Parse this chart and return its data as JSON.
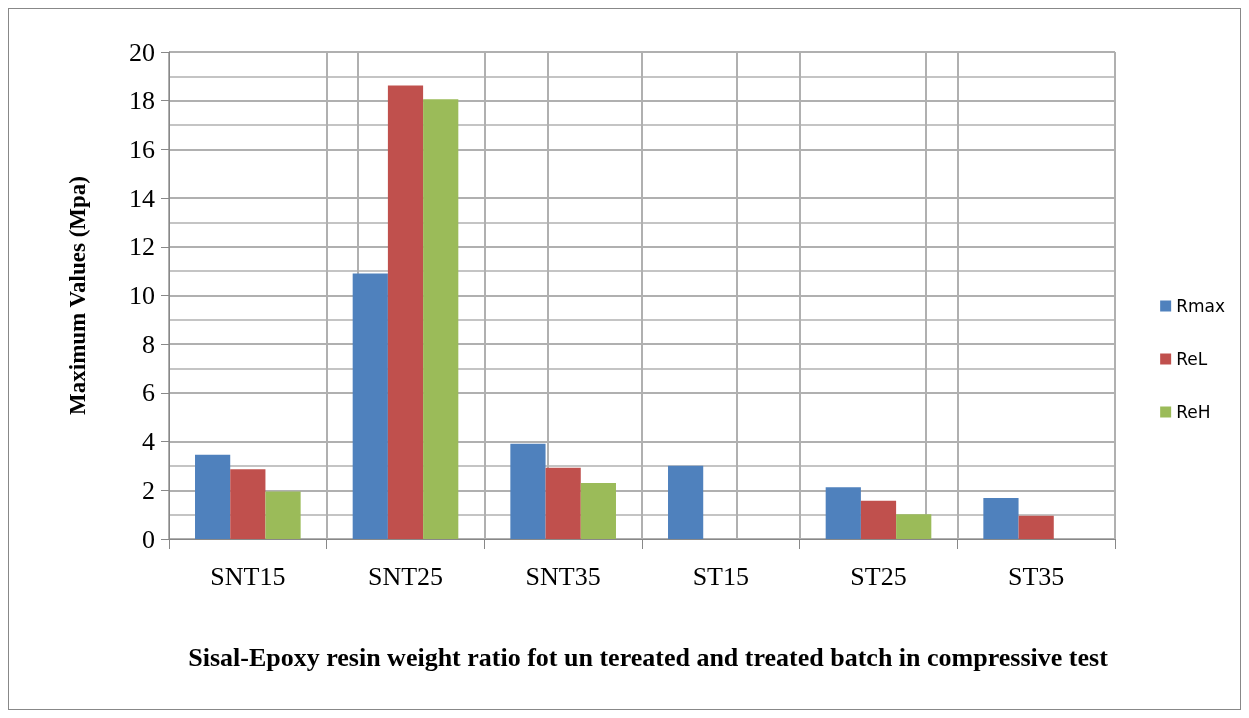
{
  "chart_data": {
    "type": "bar",
    "xlabel": "Sisal-Epoxy resin weight ratio fot un tereated and treated batch in compressive test",
    "ylabel": "Maximum Values (Mpa)",
    "categories": [
      "SNT15",
      "SNT25",
      "SNT35",
      "ST15",
      "ST25",
      "ST35"
    ],
    "series": [
      {
        "name": "Rmax",
        "color": "#4f81bd",
        "values": [
          3.46,
          10.9,
          3.91,
          3.01,
          2.13,
          1.68
        ]
      },
      {
        "name": "ReL",
        "color": "#c0504d",
        "values": [
          2.86,
          18.62,
          2.93,
          null,
          1.57,
          0.95
        ]
      },
      {
        "name": "ReH",
        "color": "#9bbb59",
        "values": [
          1.95,
          18.06,
          2.3,
          null,
          1.02,
          null
        ]
      }
    ],
    "ylim": [
      0,
      20
    ],
    "yticks": [
      0,
      2,
      4,
      6,
      8,
      10,
      12,
      14,
      16,
      18,
      20
    ],
    "grid": true,
    "legend": "right"
  }
}
